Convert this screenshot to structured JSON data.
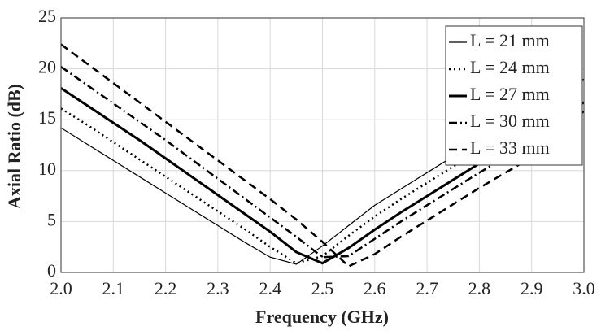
{
  "chart_data": {
    "type": "line",
    "xlabel": "Frequency (GHz)",
    "ylabel": "Axial Ratio (dB)",
    "x": [
      2.0,
      2.05,
      2.1,
      2.15,
      2.2,
      2.25,
      2.3,
      2.35,
      2.4,
      2.45,
      2.5,
      2.55,
      2.6,
      2.65,
      2.7,
      2.75,
      2.8,
      2.85,
      2.9,
      2.95,
      3.0
    ],
    "xlim": [
      2.0,
      3.0
    ],
    "xticks": [
      {
        "value": 2.0,
        "label": "2.0"
      },
      {
        "value": 2.1,
        "label": "2.1"
      },
      {
        "value": 2.2,
        "label": "2.2"
      },
      {
        "value": 2.3,
        "label": "2.3"
      },
      {
        "value": 2.4,
        "label": "2.4"
      },
      {
        "value": 2.5,
        "label": "2.5"
      },
      {
        "value": 2.6,
        "label": "2.6"
      },
      {
        "value": 2.7,
        "label": "2.7"
      },
      {
        "value": 2.8,
        "label": "2.8"
      },
      {
        "value": 2.9,
        "label": "2.9"
      },
      {
        "value": 3.0,
        "label": "3.0"
      }
    ],
    "ylim": [
      0,
      25
    ],
    "yticks": [
      0,
      5,
      10,
      15,
      20,
      25
    ],
    "grid": true,
    "legend": "upper right",
    "series": [
      {
        "name": "L = 21 mm",
        "color": "#000000",
        "dash": "solid",
        "width": 1.2,
        "values": [
          14.2,
          12.6,
          11.0,
          9.4,
          7.8,
          6.2,
          4.6,
          3.0,
          1.5,
          0.8,
          2.6,
          4.6,
          6.6,
          8.2,
          9.8,
          11.4,
          13.0,
          14.5,
          16.0,
          17.5,
          19.0
        ]
      },
      {
        "name": "L = 24 mm",
        "color": "#000000",
        "dash": "dotted",
        "width": 2.5,
        "values": [
          16.1,
          14.5,
          12.8,
          11.1,
          9.4,
          7.7,
          6.0,
          4.3,
          2.5,
          0.9,
          1.6,
          3.6,
          5.5,
          7.2,
          8.8,
          10.4,
          12.0,
          13.5,
          15.0,
          16.5,
          18.0
        ]
      },
      {
        "name": "L = 27 mm",
        "color": "#000000",
        "dash": "solid",
        "width": 3,
        "values": [
          18.1,
          16.4,
          14.7,
          13.0,
          11.2,
          9.4,
          7.6,
          5.8,
          4.0,
          2.0,
          0.9,
          2.4,
          4.2,
          5.9,
          7.5,
          9.1,
          10.7,
          12.2,
          13.7,
          15.2,
          16.7
        ]
      },
      {
        "name": "L = 30 mm",
        "color": "#000000",
        "dash": "dashdot",
        "width": 2.5,
        "values": [
          20.2,
          18.4,
          16.6,
          14.8,
          13.0,
          11.1,
          9.2,
          7.3,
          5.4,
          3.5,
          1.5,
          1.6,
          3.3,
          5.0,
          6.6,
          8.2,
          9.8,
          11.3,
          12.8,
          14.3,
          15.8
        ]
      },
      {
        "name": "L = 33 mm",
        "color": "#000000",
        "dash": "dashed",
        "width": 2.5,
        "values": [
          22.4,
          20.5,
          18.6,
          16.7,
          14.8,
          12.9,
          11.0,
          9.1,
          7.2,
          5.2,
          3.0,
          0.6,
          1.8,
          3.5,
          5.1,
          6.7,
          8.3,
          9.8,
          11.3,
          12.8,
          14.3
        ]
      }
    ]
  }
}
